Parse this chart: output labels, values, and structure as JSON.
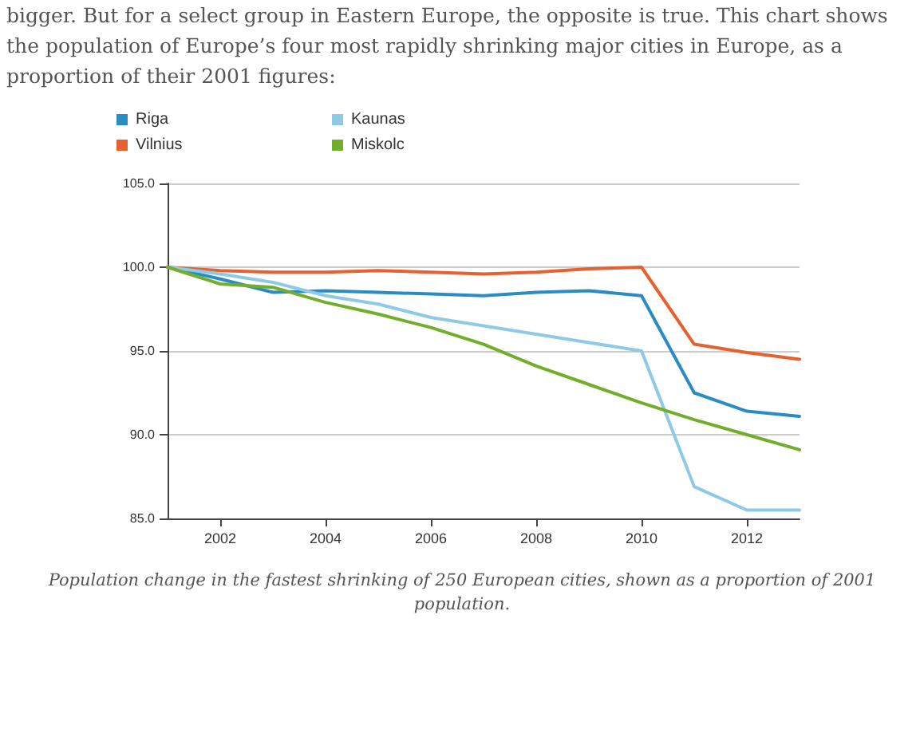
{
  "chart_data": {
    "type": "line",
    "subtitle": "bigger. But for a select group in Eastern Europe, the opposite is true. This chart shows the population of Europe’s four most rapidly shrinking major cities in Europe, as a proportion of their 2001 figures:",
    "x": [
      2001,
      2002,
      2003,
      2004,
      2005,
      2006,
      2007,
      2008,
      2009,
      2010,
      2011,
      2012,
      2013
    ],
    "series": [
      {
        "name": "Riga",
        "color": "#2b8cc4",
        "values": [
          100,
          99.3,
          98.5,
          98.6,
          98.5,
          98.4,
          98.3,
          98.5,
          98.6,
          98.3,
          92.5,
          91.4,
          91.1
        ]
      },
      {
        "name": "Vilnius",
        "color": "#e5612f",
        "values": [
          100,
          99.8,
          99.7,
          99.7,
          99.8,
          99.7,
          99.6,
          99.7,
          99.9,
          100,
          95.4,
          94.9,
          94.5
        ]
      },
      {
        "name": "Kaunas",
        "color": "#8ecae6",
        "values": [
          100,
          99.6,
          99.1,
          98.3,
          97.8,
          97.0,
          96.5,
          96.0,
          95.5,
          95.0,
          86.9,
          85.5,
          85.5
        ]
      },
      {
        "name": "Miskolc",
        "color": "#72ad2b",
        "values": [
          100,
          99.0,
          98.8,
          97.9,
          97.2,
          96.4,
          95.4,
          94.1,
          93.0,
          91.9,
          90.9,
          90.0,
          89.1
        ]
      }
    ],
    "xlim": [
      2001,
      2013
    ],
    "xticks": [
      2002,
      2004,
      2006,
      2008,
      2010,
      2012
    ],
    "ylim": [
      85,
      105
    ],
    "yticks": [
      {
        "value": 85,
        "label": "85.0"
      },
      {
        "value": 90,
        "label": "90.0"
      },
      {
        "value": 95,
        "label": "95.0"
      },
      {
        "value": 100,
        "label": "100.0"
      },
      {
        "value": 105,
        "label": "105.0"
      }
    ],
    "grid": "y",
    "legend": "top left",
    "marker": "none",
    "line_style": "solid",
    "annotations": [
      "Population change in the fastest shrinking of 250 European cities, shown as a proportion of 2001 population."
    ]
  }
}
